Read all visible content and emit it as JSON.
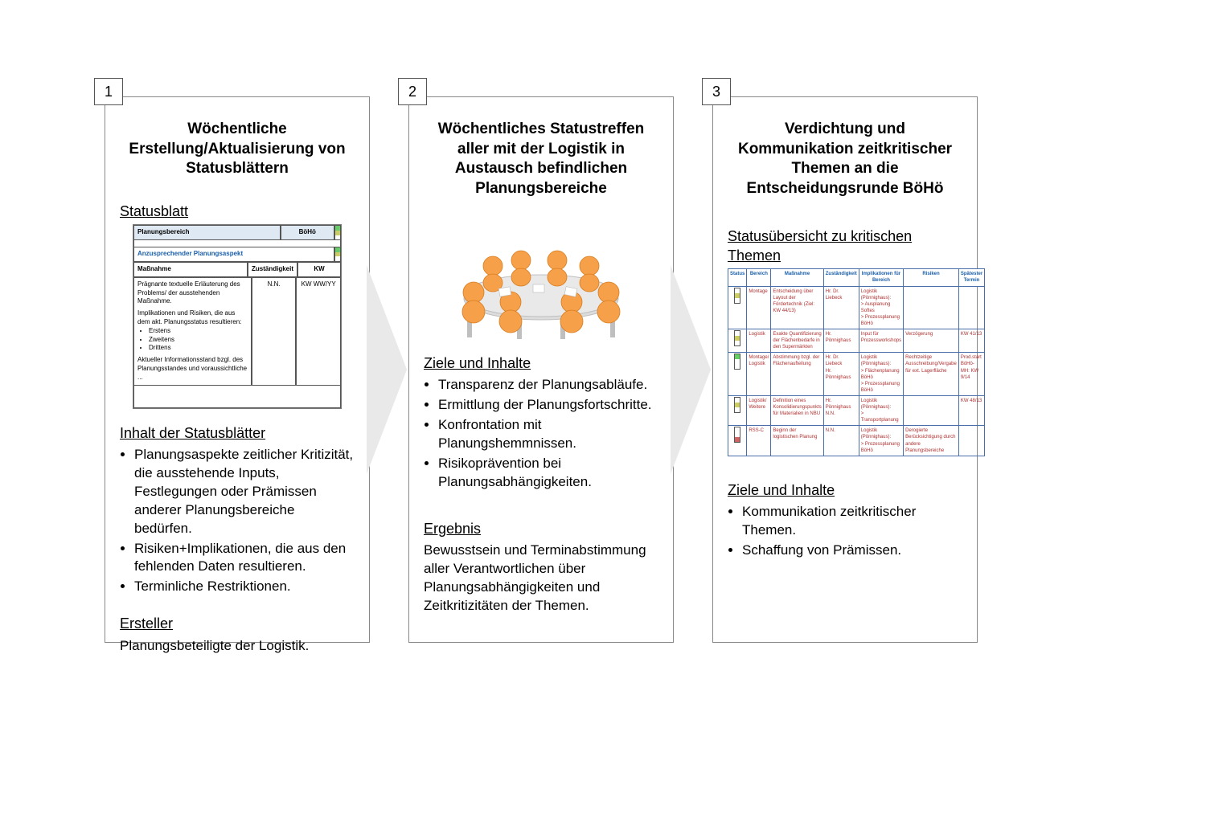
{
  "panels": [
    {
      "num": "1",
      "title": "Wöchentliche Erstellung/Aktualisierung von Statusblättern",
      "statusblatt_label": "Statusblatt",
      "sb": {
        "planungsbereich": "Planungsbereich",
        "boho": "BöHö",
        "aspect_label": "Anzusprechender Planungsaspekt",
        "massnahme": "Maßnahme",
        "zust": "Zuständigkeit",
        "kw": "KW",
        "body1": "Prägnante textuelle Erläuterung des Problems/ der ausstehenden Maßnahme.",
        "body2": "Implikationen und Risiken, die aus dem akt. Planungsstatus resultieren:",
        "li1": "Erstens",
        "li2": "Zweitens",
        "li3": "Drittens",
        "body3": "Aktueller Informationsstand bzgl. des Planungsstandes und voraussichtliche ...",
        "nn": "N.N.",
        "kwval": "KW WW/YY"
      },
      "inhalt_title": "Inhalt der Statusblätter",
      "inhalt": [
        "Planungsaspekte zeitlicher Kritizität, die ausstehende Inputs, Festlegungen oder Prämissen anderer Planungsbereiche bedürfen.",
        "Risiken+Implikationen, die aus den fehlenden Daten resultieren.",
        "Terminliche Restriktionen."
      ],
      "ersteller_title": "Ersteller",
      "ersteller_body": "Planungsbeteiligte der Logistik."
    },
    {
      "num": "2",
      "title": "Wöchentliches Statustreffen aller mit der Logistik in Austausch befindlichen Planungsbereiche",
      "ziele_title": "Ziele und Inhalte",
      "ziele": [
        "Transparenz der Planungsabläufe.",
        "Ermittlung der Planungsfortschritte.",
        "Konfrontation mit Planungshemmnissen.",
        "Risikoprävention bei Planungsabhängigkeiten."
      ],
      "ergebnis_title": "Ergebnis",
      "ergebnis_body": "Bewusstsein und Terminabstimmung aller Verantwortlichen über Planungsabhängigkeiten und Zeitkritizitäten der Themen."
    },
    {
      "num": "3",
      "title": "Verdichtung und Kommunikation zeitkritischer Themen an die Entscheidungsrunde BöHö",
      "overview_label": "Statusübersicht zu kritischen Themen",
      "ovw_headers": [
        "Status",
        "Bereich",
        "Maßnahme",
        "Zuständigkeit",
        "Implikationen für Bereich",
        "Risiken",
        "Spätester Termin"
      ],
      "ovw_rows": [
        {
          "light": "y",
          "bereich": "Montage",
          "mass": "Entscheidung über Layout der Fördertechnik (Ziel: KW 44/13)",
          "zust": "Hr. Dr. Liebeck",
          "impl": "Logistik (Pönnighaus):\n> Ausplanung Softes\n> Prozessplanung BöHö",
          "risk": "",
          "term": ""
        },
        {
          "light": "y",
          "bereich": "Logistik",
          "mass": "Exakte Quantifizierung der Flächenbedarfe in den Supermärkten",
          "zust": "Hr. Pönnighaus",
          "impl": "Input für Prozessworkshops",
          "risk": "Verzögerung",
          "term": "KW 41/13"
        },
        {
          "light": "g",
          "bereich": "Montage/ Logistik",
          "mass": "Abstimmung bzgl. der Flächenaufteilung",
          "zust": "Hr. Dr. Liebeck\nHr. Pönnighaus",
          "impl": "Logistik (Pönnighaus):\n> Flächenplanung BöHö\n> Prozessplanung BöHö",
          "risk": "Rechtzeitige Ausschreibung/Vergabe für ext. Lagerfläche",
          "term": "Prod.start BöHö-MH: KW 9/14"
        },
        {
          "light": "y",
          "bereich": "Logistik/ Weitere",
          "mass": "Definition eines Konsolidierungspunkts für Materialien in NBU",
          "zust": "Hr. Pönnighaus\nN.N.",
          "impl": "Logistik (Pönnighaus):\n> Transportplanung",
          "risk": "",
          "term": "KW 48/13"
        },
        {
          "light": "r",
          "bereich": "RSS-C",
          "mass": "Beginn der logistischen Planung",
          "zust": "N.N.",
          "impl": "Logistik (Pönnighaus):\n> Prozessplanung BöHö",
          "risk": "Derogierte Berücksichtigung durch andere Planungsbereiche",
          "term": ""
        }
      ],
      "ziele_title": "Ziele und Inhalte",
      "ziele": [
        "Kommunikation zeitkritischer Themen.",
        "Schaffung von Prämissen."
      ]
    }
  ],
  "colors": {
    "border": "#888888",
    "arrow": "#e9e9e9",
    "blue_text": "#1a5fab",
    "table_border": "#4a6ea9",
    "red_text": "#b03030",
    "green": "#66cc66",
    "yellow": "#cccc66",
    "red": "#cc6666",
    "skin": "#f7a04a",
    "table_top": "#dcdcdc",
    "table_leg": "#bfbfbf"
  }
}
